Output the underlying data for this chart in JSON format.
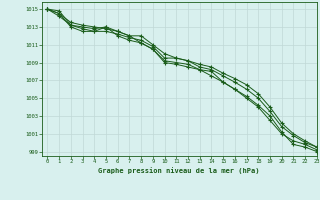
{
  "title": "Graphe pression niveau de la mer (hPa)",
  "background_color": "#d8f0ee",
  "grid_color": "#c0d8d6",
  "line_color": "#1a5c1a",
  "marker_color": "#1a5c1a",
  "xlim": [
    -0.5,
    23
  ],
  "ylim": [
    998.5,
    1015.8
  ],
  "yticks": [
    999,
    1001,
    1003,
    1005,
    1007,
    1009,
    1011,
    1013,
    1015
  ],
  "xticks": [
    0,
    1,
    2,
    3,
    4,
    5,
    6,
    7,
    8,
    9,
    10,
    11,
    12,
    13,
    14,
    15,
    16,
    17,
    18,
    19,
    20,
    21,
    22,
    23
  ],
  "series": [
    [
      1015.0,
      1014.8,
      1013.2,
      1013.0,
      1012.8,
      1013.0,
      1012.0,
      1011.5,
      1011.2,
      1010.5,
      1009.0,
      1008.8,
      1008.5,
      1008.2,
      1007.5,
      1006.8,
      1006.0,
      1005.2,
      1004.2,
      1003.0,
      1001.2,
      999.8,
      999.5,
      999.0
    ],
    [
      1015.0,
      1014.5,
      1013.0,
      1012.5,
      1012.5,
      1013.0,
      1012.5,
      1012.0,
      1011.2,
      1010.5,
      1009.2,
      1009.0,
      1008.8,
      1008.2,
      1008.0,
      1006.8,
      1006.0,
      1005.0,
      1004.0,
      1002.5,
      1001.0,
      1000.2,
      999.8,
      999.2
    ],
    [
      1015.0,
      1014.2,
      1013.2,
      1012.8,
      1012.5,
      1012.5,
      1012.2,
      1011.8,
      1011.5,
      1010.8,
      1009.5,
      1009.5,
      1009.2,
      1008.5,
      1008.2,
      1007.5,
      1006.8,
      1006.0,
      1005.0,
      1003.5,
      1001.8,
      1000.8,
      1000.0,
      999.5
    ],
    [
      1015.0,
      1014.5,
      1013.5,
      1013.2,
      1013.0,
      1012.8,
      1012.5,
      1012.0,
      1012.0,
      1011.0,
      1010.0,
      1009.5,
      1009.2,
      1008.8,
      1008.5,
      1007.8,
      1007.2,
      1006.5,
      1005.5,
      1004.0,
      1002.2,
      1001.0,
      1000.2,
      999.5
    ]
  ]
}
